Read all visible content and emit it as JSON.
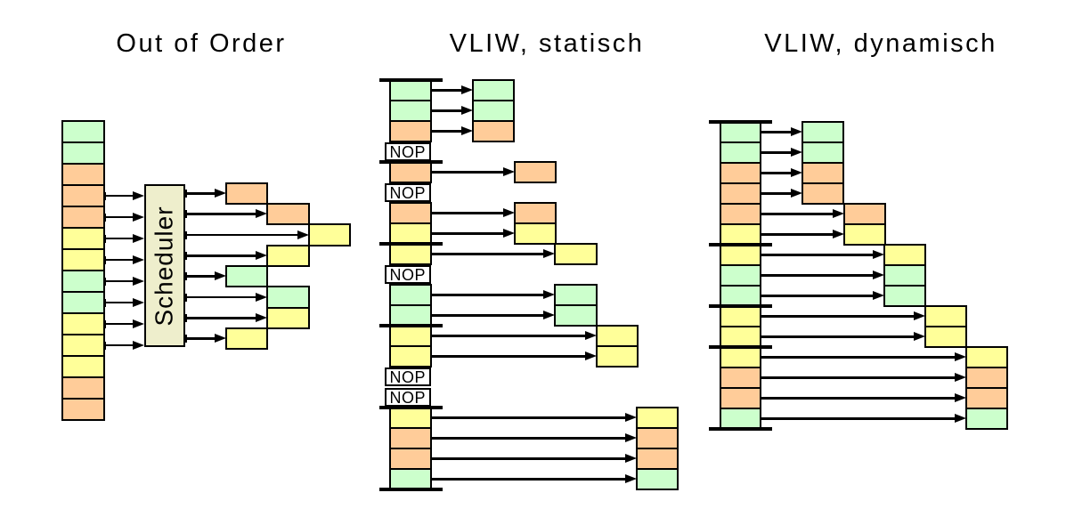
{
  "palette": {
    "green": "#ccffcc",
    "orange": "#ffcc99",
    "yellow": "#ffff99",
    "scheduler": "#eeeecc",
    "line": "#000000",
    "background": "#ffffff"
  },
  "sections": [
    {
      "id": "out-of-order",
      "title": "Out of Order",
      "scheduler_label": "Scheduler",
      "stack_cells": [
        "green",
        "green",
        "orange",
        "orange",
        "orange",
        "yellow",
        "yellow",
        "green",
        "green",
        "yellow",
        "yellow",
        "yellow",
        "orange",
        "orange"
      ],
      "scheduled_rows": [
        3,
        4,
        5,
        6,
        7,
        8,
        9,
        10
      ],
      "issued_cells": [
        {
          "slot": 0,
          "col": 0,
          "color": "orange"
        },
        {
          "slot": 1,
          "col": 1,
          "color": "orange"
        },
        {
          "slot": 2,
          "col": 2,
          "color": "yellow"
        },
        {
          "slot": 3,
          "col": 1,
          "color": "yellow"
        },
        {
          "slot": 4,
          "col": 0,
          "color": "green"
        },
        {
          "slot": 5,
          "col": 1,
          "color": "green"
        },
        {
          "slot": 6,
          "col": 1,
          "color": "yellow"
        },
        {
          "slot": 7,
          "col": 0,
          "color": "yellow"
        }
      ]
    },
    {
      "id": "vliw-static",
      "title": "VLIW, statisch",
      "nop_label": "NOP",
      "stack_cells": [
        "green",
        "green",
        "orange",
        "NOP",
        "orange",
        "NOP",
        "orange",
        "yellow",
        "yellow",
        "NOP",
        "green",
        "green",
        "yellow",
        "yellow",
        "NOP",
        "NOP",
        "yellow",
        "orange",
        "orange",
        "green"
      ],
      "bundle_boundaries": [
        0,
        4,
        8,
        12,
        16,
        20
      ],
      "issue_map": [
        {
          "row": 0,
          "col": 0
        },
        {
          "row": 1,
          "col": 0
        },
        {
          "row": 2,
          "col": 0
        },
        {
          "row": 4,
          "col": 1
        },
        {
          "row": 6,
          "col": 1
        },
        {
          "row": 7,
          "col": 1
        },
        {
          "row": 8,
          "col": 2
        },
        {
          "row": 10,
          "col": 2
        },
        {
          "row": 11,
          "col": 2
        },
        {
          "row": 12,
          "col": 3
        },
        {
          "row": 13,
          "col": 3
        },
        {
          "row": 16,
          "col": 4
        },
        {
          "row": 17,
          "col": 4
        },
        {
          "row": 18,
          "col": 4
        },
        {
          "row": 19,
          "col": 4
        }
      ]
    },
    {
      "id": "vliw-dynamic",
      "title": "VLIW, dynamisch",
      "stack_cells": [
        "green",
        "green",
        "orange",
        "orange",
        "orange",
        "yellow",
        "yellow",
        "green",
        "green",
        "yellow",
        "yellow",
        "yellow",
        "orange",
        "orange",
        "green"
      ],
      "bundle_boundaries": [
        0,
        6,
        9,
        11,
        15
      ],
      "issue_map": [
        {
          "row": 0,
          "col": 0
        },
        {
          "row": 1,
          "col": 0
        },
        {
          "row": 2,
          "col": 0
        },
        {
          "row": 3,
          "col": 0
        },
        {
          "row": 4,
          "col": 1
        },
        {
          "row": 5,
          "col": 1
        },
        {
          "row": 6,
          "col": 2
        },
        {
          "row": 7,
          "col": 2
        },
        {
          "row": 8,
          "col": 2
        },
        {
          "row": 9,
          "col": 3
        },
        {
          "row": 10,
          "col": 3
        },
        {
          "row": 11,
          "col": 4
        },
        {
          "row": 12,
          "col": 4
        },
        {
          "row": 13,
          "col": 4
        },
        {
          "row": 14,
          "col": 4
        }
      ]
    }
  ]
}
